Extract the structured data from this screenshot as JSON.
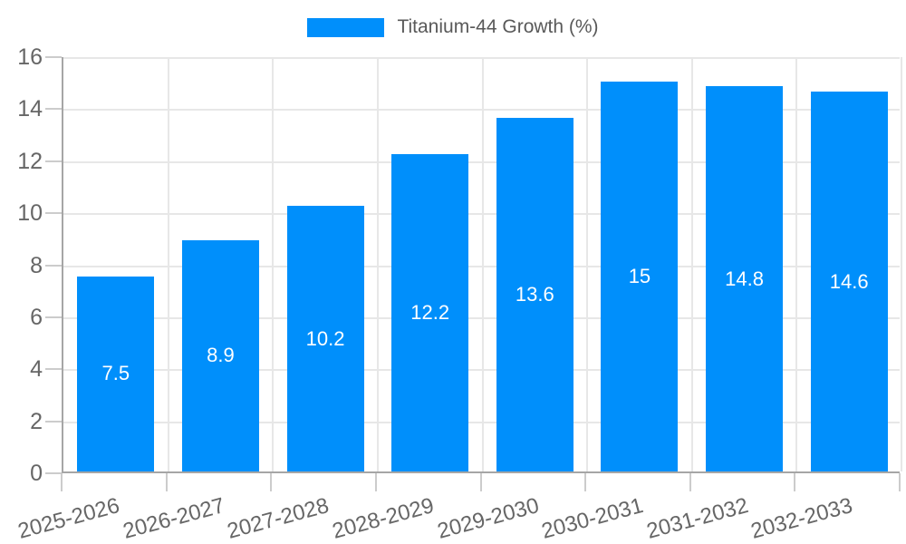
{
  "chart_data": {
    "type": "bar",
    "title": "Titanium-44 Growth (%)",
    "categories": [
      "2025-2026",
      "2026-2027",
      "2027-2028",
      "2028-2029",
      "2029-2030",
      "2030-2031",
      "2031-2032",
      "2032-2033"
    ],
    "series": [
      {
        "name": "Titanium-44 Growth (%)",
        "values": [
          7.5,
          8.9,
          10.2,
          12.2,
          13.6,
          15,
          14.8,
          14.6
        ],
        "value_labels": [
          "7.5",
          "8.9",
          "10.2",
          "12.2",
          "13.6",
          "15",
          "14.8",
          "14.6"
        ]
      }
    ],
    "xlabel": "",
    "ylabel": "",
    "ylim": [
      0,
      16
    ],
    "yticks": [
      0,
      2,
      4,
      6,
      8,
      10,
      12,
      14,
      16
    ],
    "grid": "horizontal and vertical light gridlines",
    "legend_position": "top-center",
    "x_label_rotation_deg": -15,
    "colors": {
      "bar": "#008FFB",
      "grid": "#e7e7e7",
      "axis_line": "#a6a6a6",
      "tick": "#cccccc",
      "axis_label_text": "#666666",
      "legend_text": "#595959",
      "value_label_text": "#ffffff",
      "background": "#ffffff"
    }
  }
}
